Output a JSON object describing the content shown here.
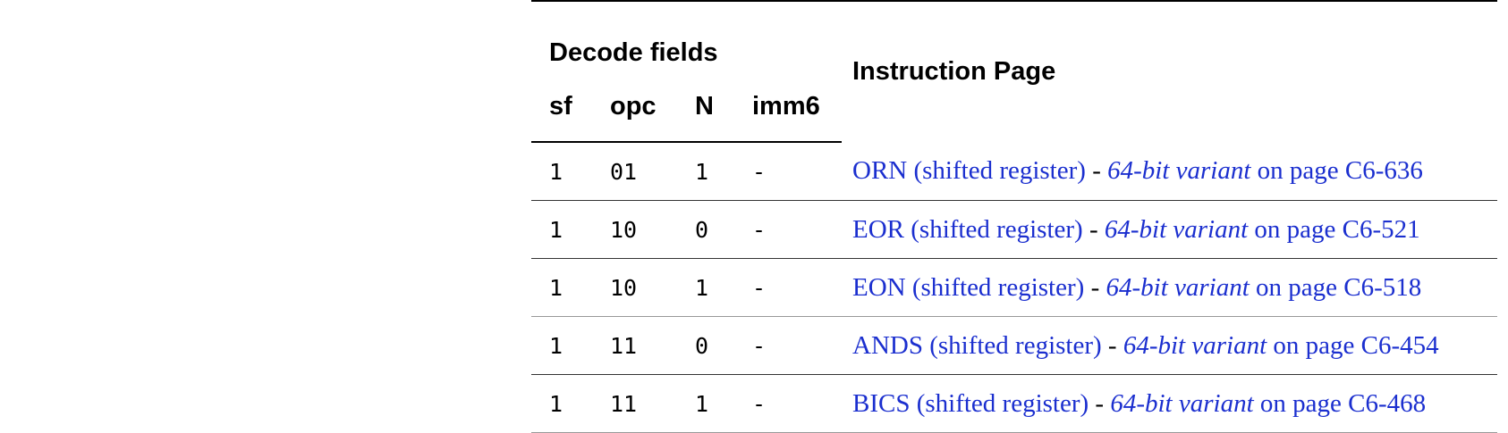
{
  "table": {
    "group_header": "Decode fields",
    "page_header": "Instruction Page",
    "field_headers": [
      "sf",
      "opc",
      "N",
      "imm6"
    ],
    "rows": [
      {
        "sf": "1",
        "opc": "01",
        "n": "1",
        "imm6": "-",
        "name": "ORN (shifted register)",
        "sep": " - ",
        "variant": "64-bit variant",
        "page_text": " on page C6-636"
      },
      {
        "sf": "1",
        "opc": "10",
        "n": "0",
        "imm6": "-",
        "name": "EOR (shifted register)",
        "sep": " - ",
        "variant": "64-bit variant",
        "page_text": " on page C6-521"
      },
      {
        "sf": "1",
        "opc": "10",
        "n": "1",
        "imm6": "-",
        "name": "EON (shifted register)",
        "sep": " - ",
        "variant": "64-bit variant",
        "page_text": " on page C6-518"
      },
      {
        "sf": "1",
        "opc": "11",
        "n": "0",
        "imm6": "-",
        "name": "ANDS (shifted register)",
        "sep": " - ",
        "variant": "64-bit variant",
        "page_text": " on page C6-454"
      },
      {
        "sf": "1",
        "opc": "11",
        "n": "1",
        "imm6": "-",
        "name": "BICS (shifted register)",
        "sep": " - ",
        "variant": "64-bit variant",
        "page_text": " on page C6-468"
      }
    ]
  }
}
